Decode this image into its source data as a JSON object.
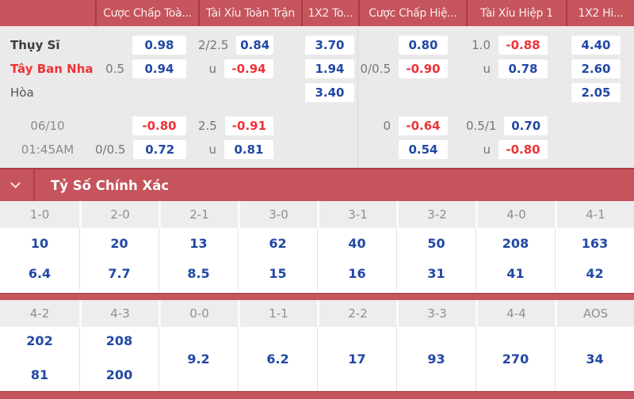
{
  "odds_table": {
    "headers": [
      "",
      "Cược Chấp Toà...",
      "Tài Xỉu Toàn Trận",
      "1X2 To...",
      "Cược Chấp Hiệ...",
      "Tài Xỉu Hiệp 1",
      "1X2 Hi..."
    ],
    "rows": [
      {
        "team": "Thụy Sĩ",
        "g1_hc": "",
        "g1": "0.98",
        "g2_hc": "2/2.5",
        "g2": "0.84",
        "g3": "3.70",
        "g4_hc": "",
        "g4": "0.80",
        "g5_hc": "1.0",
        "g5": "-0.88",
        "g6": "4.40"
      },
      {
        "team": "Tây Ban Nha",
        "g1_hc": "0.5",
        "g1": "0.94",
        "g2_hc": "u",
        "g2": "-0.94",
        "g3": "1.94",
        "g4_hc": "0/0.5",
        "g4": "-0.90",
        "g5_hc": "u",
        "g5": "0.78",
        "g6": "2.60"
      },
      {
        "team": "Hòa",
        "g3": "3.40",
        "g6": "2.05"
      },
      {
        "team": "06/10",
        "g1_hc": "",
        "g1": "-0.80",
        "g2_hc": "2.5",
        "g2": "-0.91",
        "g4_hc": "0",
        "g4": "-0.64",
        "g5_hc": "0.5/1",
        "g5": "0.70"
      },
      {
        "team": "01:45AM",
        "g1_hc": "0/0.5",
        "g1": "0.72",
        "g2_hc": "u",
        "g2": "0.81",
        "g4_hc": "",
        "g4": "0.54",
        "g5_hc": "u",
        "g5": "-0.80"
      }
    ]
  },
  "correct_score": {
    "title": "Tỷ Số Chính Xác",
    "grid1": {
      "labels": [
        "1-0",
        "2-0",
        "2-1",
        "3-0",
        "3-1",
        "3-2",
        "4-0",
        "4-1"
      ],
      "row1": [
        "10",
        "20",
        "13",
        "62",
        "40",
        "50",
        "208",
        "163"
      ],
      "row2": [
        "6.4",
        "7.7",
        "8.5",
        "15",
        "16",
        "31",
        "41",
        "42"
      ]
    },
    "grid2": {
      "labels": [
        "4-2",
        "4-3",
        "0-0",
        "1-1",
        "2-2",
        "3-3",
        "4-4",
        "AOS"
      ],
      "values": [
        [
          "202",
          "81"
        ],
        [
          "208",
          "200"
        ],
        [
          "9.2"
        ],
        [
          "6.2"
        ],
        [
          "17"
        ],
        [
          "93"
        ],
        [
          "270"
        ],
        [
          "34"
        ]
      ]
    }
  },
  "colors": {
    "accent_red": "#c5545c",
    "divider_dark_red": "#a93b43",
    "odds_blue": "#2248a5",
    "odds_negative_red": "#ee3237"
  }
}
